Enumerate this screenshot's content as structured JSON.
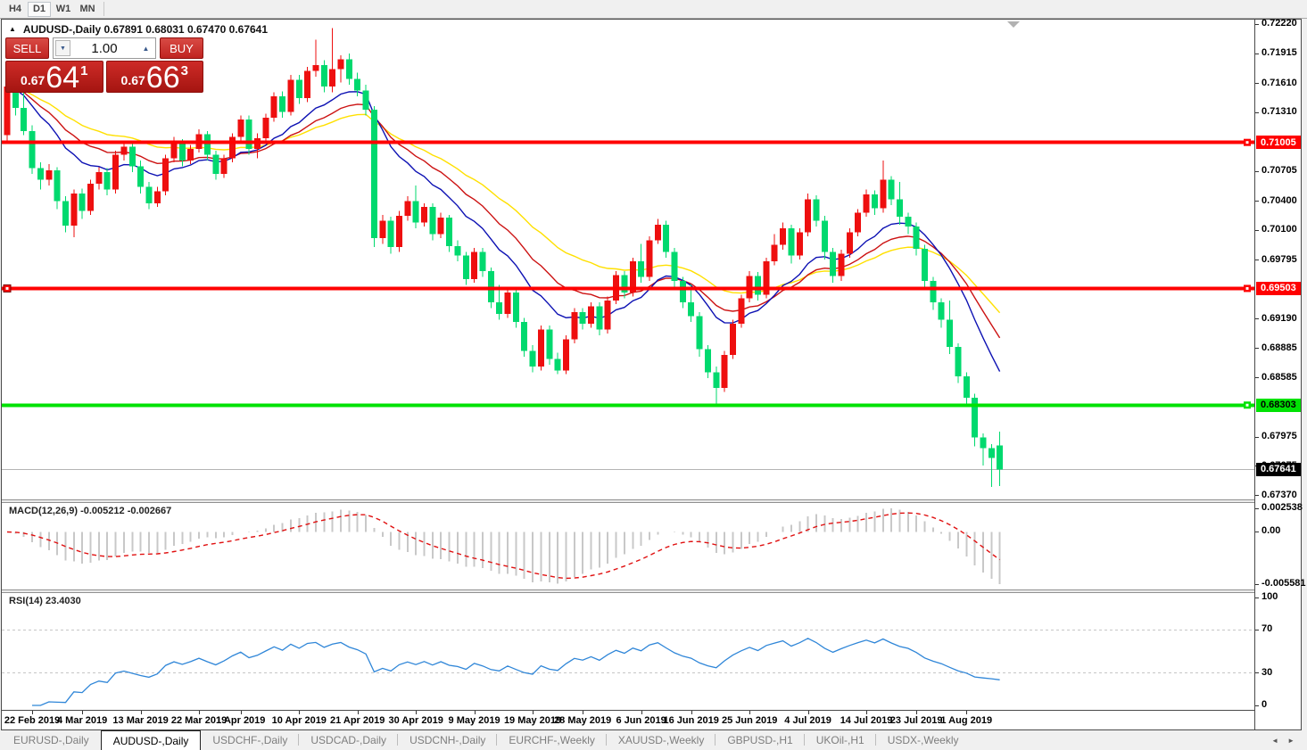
{
  "toolbar": {
    "timeframes": [
      {
        "label": "H4",
        "active": false
      },
      {
        "label": "D1",
        "active": true
      },
      {
        "label": "W1",
        "active": false
      },
      {
        "label": "MN",
        "active": false
      }
    ]
  },
  "chart_header": {
    "collapse_icon": "▲",
    "symbol": "AUDUSD-,Daily",
    "ohlc_text": "0.67891 0.68031 0.67470 0.67641"
  },
  "trade_panel": {
    "sell_label": "SELL",
    "buy_label": "BUY",
    "volume": "1.00",
    "volume_down_icon": "▼",
    "volume_up_icon": "▲",
    "sell_price": {
      "prefix": "0.67",
      "big": "64",
      "sup": "1"
    },
    "buy_price": {
      "prefix": "0.67",
      "big": "66",
      "sup": "3"
    }
  },
  "chart_data": {
    "type": "candlestick",
    "symbol": "AUDUSD",
    "timeframe": "Daily",
    "title": "AUDUSD-,Daily",
    "price_range": {
      "top": 0.72268,
      "bottom": 0.67333
    },
    "up_color": "#ee0f0f",
    "down_color": "#00d96e",
    "candles": [
      [
        0.7108,
        0.7165,
        0.7102,
        0.7158
      ],
      [
        0.7158,
        0.7163,
        0.7128,
        0.7136
      ],
      [
        0.7136,
        0.7152,
        0.7108,
        0.7112
      ],
      [
        0.7112,
        0.7118,
        0.7068,
        0.7074
      ],
      [
        0.7074,
        0.708,
        0.7052,
        0.7062
      ],
      [
        0.7062,
        0.7078,
        0.7056,
        0.7072
      ],
      [
        0.7072,
        0.7075,
        0.7032,
        0.704
      ],
      [
        0.704,
        0.7045,
        0.7008,
        0.7015
      ],
      [
        0.7015,
        0.7052,
        0.7003,
        0.7048
      ],
      [
        0.7048,
        0.7053,
        0.7022,
        0.703
      ],
      [
        0.703,
        0.7062,
        0.7026,
        0.7058
      ],
      [
        0.7058,
        0.7075,
        0.7052,
        0.707
      ],
      [
        0.707,
        0.7074,
        0.7046,
        0.7052
      ],
      [
        0.7052,
        0.7092,
        0.7048,
        0.7088
      ],
      [
        0.7088,
        0.7102,
        0.7082,
        0.7096
      ],
      [
        0.7096,
        0.71,
        0.707,
        0.7076
      ],
      [
        0.7076,
        0.7082,
        0.7048,
        0.7055
      ],
      [
        0.7055,
        0.706,
        0.7032,
        0.7038
      ],
      [
        0.7038,
        0.7055,
        0.7034,
        0.705
      ],
      [
        0.705,
        0.7088,
        0.7046,
        0.7084
      ],
      [
        0.7084,
        0.7106,
        0.708,
        0.71
      ],
      [
        0.71,
        0.7104,
        0.7076,
        0.7082
      ],
      [
        0.7082,
        0.7098,
        0.7078,
        0.7094
      ],
      [
        0.7094,
        0.7114,
        0.709,
        0.7109
      ],
      [
        0.7109,
        0.7112,
        0.7082,
        0.7088
      ],
      [
        0.7088,
        0.7092,
        0.7062,
        0.7068
      ],
      [
        0.7068,
        0.7088,
        0.7064,
        0.7084
      ],
      [
        0.7084,
        0.711,
        0.708,
        0.7106
      ],
      [
        0.7106,
        0.7128,
        0.7102,
        0.7124
      ],
      [
        0.7124,
        0.7128,
        0.7088,
        0.7094
      ],
      [
        0.7094,
        0.711,
        0.7084,
        0.7105
      ],
      [
        0.7105,
        0.713,
        0.71,
        0.7126
      ],
      [
        0.7126,
        0.7152,
        0.7122,
        0.7148
      ],
      [
        0.7148,
        0.7153,
        0.7126,
        0.7132
      ],
      [
        0.7132,
        0.717,
        0.7128,
        0.7165
      ],
      [
        0.7165,
        0.717,
        0.714,
        0.7146
      ],
      [
        0.7146,
        0.7178,
        0.7142,
        0.7174
      ],
      [
        0.7174,
        0.7206,
        0.7168,
        0.718
      ],
      [
        0.718,
        0.7185,
        0.7152,
        0.7158
      ],
      [
        0.7158,
        0.7218,
        0.7152,
        0.7176
      ],
      [
        0.7176,
        0.719,
        0.7162,
        0.7186
      ],
      [
        0.7186,
        0.7192,
        0.716,
        0.7166
      ],
      [
        0.7166,
        0.7172,
        0.7148,
        0.7154
      ],
      [
        0.7154,
        0.716,
        0.7128,
        0.7134
      ],
      [
        0.7134,
        0.7138,
        0.6993,
        0.7002
      ],
      [
        0.7002,
        0.7026,
        0.6996,
        0.702
      ],
      [
        0.702,
        0.7024,
        0.6986,
        0.6993
      ],
      [
        0.6993,
        0.703,
        0.6988,
        0.7025
      ],
      [
        0.7025,
        0.7045,
        0.702,
        0.704
      ],
      [
        0.704,
        0.7056,
        0.7012,
        0.7018
      ],
      [
        0.7018,
        0.7038,
        0.7014,
        0.7034
      ],
      [
        0.7034,
        0.7038,
        0.7,
        0.7006
      ],
      [
        0.7006,
        0.7028,
        0.7002,
        0.7023
      ],
      [
        0.7023,
        0.7026,
        0.6988,
        0.6994
      ],
      [
        0.6994,
        0.7,
        0.6978,
        0.6984
      ],
      [
        0.6984,
        0.6988,
        0.6954,
        0.696
      ],
      [
        0.696,
        0.6992,
        0.6956,
        0.6988
      ],
      [
        0.6988,
        0.6992,
        0.6962,
        0.6968
      ],
      [
        0.6968,
        0.6972,
        0.693,
        0.6936
      ],
      [
        0.6936,
        0.6954,
        0.6918,
        0.6924
      ],
      [
        0.6924,
        0.695,
        0.692,
        0.6946
      ],
      [
        0.6946,
        0.695,
        0.691,
        0.6916
      ],
      [
        0.6916,
        0.692,
        0.688,
        0.6886
      ],
      [
        0.6886,
        0.6892,
        0.6864,
        0.687
      ],
      [
        0.687,
        0.6912,
        0.6866,
        0.6908
      ],
      [
        0.6908,
        0.6912,
        0.6872,
        0.6878
      ],
      [
        0.6878,
        0.6884,
        0.6862,
        0.6866
      ],
      [
        0.6866,
        0.6902,
        0.6862,
        0.6898
      ],
      [
        0.6898,
        0.693,
        0.6894,
        0.6926
      ],
      [
        0.6926,
        0.693,
        0.6908,
        0.6914
      ],
      [
        0.6914,
        0.6936,
        0.691,
        0.6932
      ],
      [
        0.6932,
        0.6936,
        0.6902,
        0.6908
      ],
      [
        0.6908,
        0.6942,
        0.6904,
        0.6938
      ],
      [
        0.6938,
        0.6968,
        0.6934,
        0.6964
      ],
      [
        0.6964,
        0.6968,
        0.694,
        0.6946
      ],
      [
        0.6946,
        0.6982,
        0.6942,
        0.6978
      ],
      [
        0.6978,
        0.6996,
        0.6956,
        0.6962
      ],
      [
        0.6962,
        0.7004,
        0.6958,
        0.7
      ],
      [
        0.7,
        0.7022,
        0.6996,
        0.7016
      ],
      [
        0.7016,
        0.702,
        0.6982,
        0.6988
      ],
      [
        0.6988,
        0.6992,
        0.695,
        0.6958
      ],
      [
        0.6958,
        0.6962,
        0.693,
        0.6936
      ],
      [
        0.6936,
        0.6955,
        0.6916,
        0.6922
      ],
      [
        0.6922,
        0.6926,
        0.688,
        0.6888
      ],
      [
        0.6888,
        0.6892,
        0.6858,
        0.6864
      ],
      [
        0.6864,
        0.687,
        0.6832,
        0.6848
      ],
      [
        0.6848,
        0.6886,
        0.6844,
        0.6882
      ],
      [
        0.6882,
        0.6918,
        0.6878,
        0.6914
      ],
      [
        0.6914,
        0.6944,
        0.691,
        0.694
      ],
      [
        0.694,
        0.6968,
        0.6936,
        0.6963
      ],
      [
        0.6963,
        0.6967,
        0.6938,
        0.6944
      ],
      [
        0.6944,
        0.6982,
        0.694,
        0.6978
      ],
      [
        0.6978,
        0.7006,
        0.6974,
        0.6995
      ],
      [
        0.6995,
        0.7018,
        0.699,
        0.7012
      ],
      [
        0.7012,
        0.7016,
        0.6976,
        0.6984
      ],
      [
        0.6984,
        0.7012,
        0.698,
        0.7008
      ],
      [
        0.7008,
        0.7048,
        0.7004,
        0.7042
      ],
      [
        0.7042,
        0.7046,
        0.7014,
        0.702
      ],
      [
        0.702,
        0.7025,
        0.698,
        0.6988
      ],
      [
        0.6988,
        0.6992,
        0.6956,
        0.6963
      ],
      [
        0.6963,
        0.699,
        0.6958,
        0.6986
      ],
      [
        0.6986,
        0.7012,
        0.6982,
        0.7008
      ],
      [
        0.7008,
        0.7032,
        0.7004,
        0.7028
      ],
      [
        0.7028,
        0.7052,
        0.7024,
        0.7047
      ],
      [
        0.7047,
        0.7051,
        0.7026,
        0.7033
      ],
      [
        0.7033,
        0.7082,
        0.7028,
        0.7062
      ],
      [
        0.7062,
        0.7066,
        0.7036,
        0.7042
      ],
      [
        0.7042,
        0.706,
        0.7016,
        0.7024
      ],
      [
        0.7024,
        0.7028,
        0.7006,
        0.7014
      ],
      [
        0.7014,
        0.7018,
        0.6984,
        0.6991
      ],
      [
        0.6991,
        0.6995,
        0.695,
        0.6958
      ],
      [
        0.6958,
        0.6962,
        0.6928,
        0.6936
      ],
      [
        0.6936,
        0.694,
        0.691,
        0.6918
      ],
      [
        0.6918,
        0.6938,
        0.6883,
        0.689
      ],
      [
        0.689,
        0.6894,
        0.6853,
        0.686
      ],
      [
        0.686,
        0.6864,
        0.683,
        0.6838
      ],
      [
        0.6838,
        0.6842,
        0.6788,
        0.6797
      ],
      [
        0.6797,
        0.6801,
        0.6768,
        0.6786
      ],
      [
        0.6786,
        0.679,
        0.6746,
        0.6776
      ],
      [
        0.6789,
        0.6803,
        0.6747,
        0.6764
      ]
    ],
    "moving_averages": [
      {
        "name": "ma-slow",
        "period": 34,
        "color": "#ffe000"
      },
      {
        "name": "ma-mid",
        "period": 21,
        "color": "#cc1212"
      },
      {
        "name": "ma-fast",
        "period": 13,
        "color": "#0d11b3"
      }
    ],
    "h_lines": [
      {
        "value": 0.71005,
        "label": "0.71005",
        "color": "#ff0000",
        "text_color": "#ffffff",
        "thickness": 4,
        "handle_left": false,
        "handle_right": true
      },
      {
        "value": 0.69503,
        "label": "0.69503",
        "color": "#ff0000",
        "text_color": "#ffffff",
        "thickness": 4,
        "handle_left": true,
        "handle_right": true
      },
      {
        "value": 0.68303,
        "label": "0.68303",
        "color": "#00e204",
        "text_color": "#000000",
        "thickness": 4,
        "handle_left": false,
        "handle_right": true
      }
    ],
    "current_price": {
      "value": 0.67641,
      "label": "0.67641",
      "box_color": "#000000",
      "text_color": "#ffffff",
      "line_color": "#b4b4b4"
    },
    "y_ticks": [
      "0.72220",
      "0.71915",
      "0.71610",
      "0.71310",
      "0.70705",
      "0.70400",
      "0.70100",
      "0.69795",
      "0.69190",
      "0.68885",
      "0.68585",
      "0.67975",
      "0.67675",
      "0.67370"
    ],
    "x_labels": [
      {
        "label": "22 Feb 2019",
        "idx": 3
      },
      {
        "label": "4 Mar 2019",
        "idx": 9
      },
      {
        "label": "13 Mar 2019",
        "idx": 16
      },
      {
        "label": "22 Mar 2019",
        "idx": 23
      },
      {
        "label": "1 Apr 2019",
        "idx": 28
      },
      {
        "label": "10 Apr 2019",
        "idx": 35
      },
      {
        "label": "21 Apr 2019",
        "idx": 42
      },
      {
        "label": "30 Apr 2019",
        "idx": 49
      },
      {
        "label": "9 May 2019",
        "idx": 56
      },
      {
        "label": "19 May 2019",
        "idx": 63
      },
      {
        "label": "28 May 2019",
        "idx": 69
      },
      {
        "label": "6 Jun 2019",
        "idx": 76
      },
      {
        "label": "16 Jun 2019",
        "idx": 82
      },
      {
        "label": "25 Jun 2019",
        "idx": 89
      },
      {
        "label": "4 Jul 2019",
        "idx": 96
      },
      {
        "label": "14 Jul 2019",
        "idx": 103
      },
      {
        "label": "23 Jul 2019",
        "idx": 109
      },
      {
        "label": "1 Aug 2019",
        "idx": 115
      }
    ],
    "shift_marker_icon": "▼",
    "macd": {
      "label": "MACD(12,26,9)",
      "values_text": "-0.005212 -0.002667",
      "fast": 12,
      "slow": 26,
      "signal": 9,
      "histogram_color": "#c8c8c8",
      "signal_color": "#e01010",
      "scale_top": "0.002538",
      "scale_zero": "0.00",
      "scale_bottom": "-0.005581"
    },
    "rsi": {
      "label": "RSI(14)",
      "value_text": "23.4030",
      "period": 14,
      "line_color": "#2f86d8",
      "levels": [
        70,
        30
      ],
      "scale": [
        "100",
        "70",
        "30",
        "0"
      ]
    }
  },
  "tabs": {
    "items": [
      {
        "label": "EURUSD-,Daily",
        "active": false
      },
      {
        "label": "AUDUSD-,Daily",
        "active": true
      },
      {
        "label": "USDCHF-,Daily",
        "active": false
      },
      {
        "label": "USDCAD-,Daily",
        "active": false
      },
      {
        "label": "USDCNH-,Daily",
        "active": false
      },
      {
        "label": "EURCHF-,Weekly",
        "active": false
      },
      {
        "label": "XAUUSD-,Weekly",
        "active": false
      },
      {
        "label": "GBPUSD-,H1",
        "active": false
      },
      {
        "label": "UKOil-,H1",
        "active": false
      },
      {
        "label": "USDX-,Weekly",
        "active": false
      }
    ],
    "scroll_left_icon": "◄",
    "scroll_right_icon": "►"
  }
}
